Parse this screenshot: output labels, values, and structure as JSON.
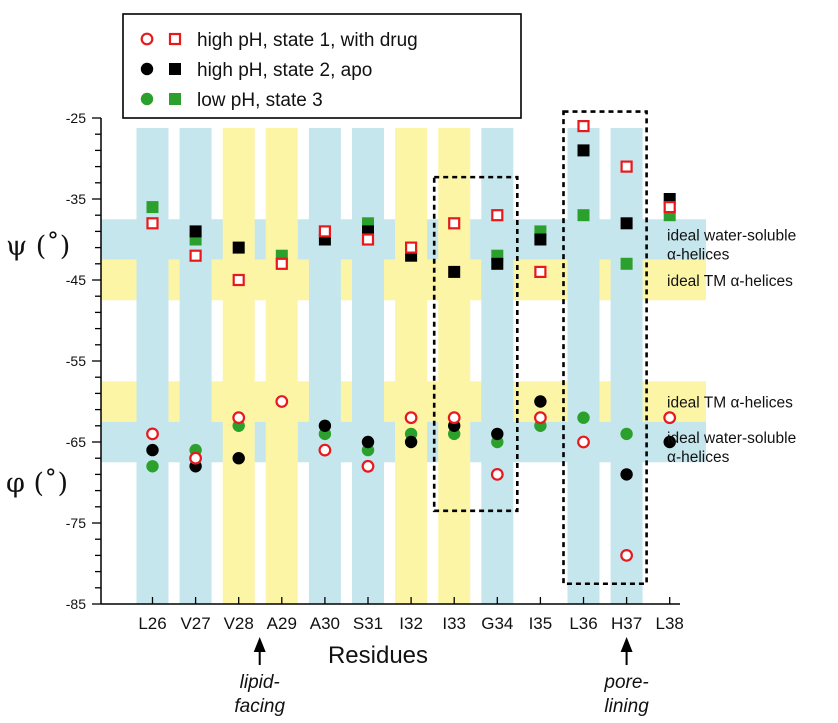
{
  "chart_data": {
    "type": "scatter",
    "xlabel": "Residues",
    "categories": [
      "L26",
      "V27",
      "V28",
      "A29",
      "A30",
      "S31",
      "I32",
      "I33",
      "G34",
      "I35",
      "L36",
      "H37",
      "L38"
    ],
    "y_range": [
      -85,
      -25
    ],
    "y_ticks": [
      -25,
      -35,
      -45,
      -55,
      -65,
      -75,
      -85
    ],
    "axis_symbols": {
      "psi": "ψ (˚)",
      "phi": "φ (˚)"
    },
    "legend_placement": "top-left",
    "legend": [
      {
        "label": "high pH, state 1, with drug",
        "color": "#e8191d",
        "fill": "open"
      },
      {
        "label": "high pH, state 2, apo",
        "color": "#000000",
        "fill": "solid"
      },
      {
        "label": "low pH, state 3",
        "color": "#2ca02c",
        "fill": "solid"
      }
    ],
    "column_colors": {
      "L26": "blue",
      "V27": "blue",
      "V28": "yellow",
      "A29": "yellow",
      "A30": "blue",
      "S31": "blue",
      "I32": "yellow",
      "I33": "yellow",
      "G34": "blue",
      "I35": "none",
      "L36": "blue",
      "H37": "blue",
      "L38": "none"
    },
    "bands": [
      {
        "kind": "water",
        "range": [
          -42.5,
          -37.5
        ],
        "label1": "ideal water-soluble",
        "label2": "α-helices"
      },
      {
        "kind": "tm",
        "range": [
          -47.5,
          -42.5
        ],
        "label1": "ideal TM α-helices",
        "label2": ""
      },
      {
        "kind": "tm",
        "range": [
          -62.5,
          -57.5
        ],
        "label1": "ideal TM α-helices",
        "label2": ""
      },
      {
        "kind": "water",
        "range": [
          -67.5,
          -62.5
        ],
        "label1": "ideal water-soluble",
        "label2": "α-helices"
      }
    ],
    "highlight_boxes": [
      {
        "from": "I33",
        "to": "G34",
        "y_range": [
          -73.5,
          -32.3
        ]
      },
      {
        "from": "L36",
        "to": "H37",
        "y_range": [
          -82.5,
          -24.2
        ]
      }
    ],
    "annotations": [
      {
        "residue": "V28",
        "lines": [
          "lipid-",
          "facing"
        ]
      },
      {
        "residue": "H37",
        "lines": [
          "pore-",
          "lining"
        ]
      }
    ],
    "colors": {
      "band_blue": "#c6e6ee",
      "band_yellow": "#fdf5a6",
      "drug": "#e8191d",
      "apo": "#000000",
      "low_ph": "#2ca02c"
    },
    "series": [
      {
        "name": "high pH, state 1, with drug",
        "angle": "psi",
        "marker": "open-square",
        "x": [
          "L26",
          "V27",
          "V28",
          "A29",
          "A30",
          "S31",
          "I32",
          "I33",
          "G34",
          "I35",
          "L36",
          "H37",
          "L38"
        ],
        "values": [
          -38,
          -42,
          -45,
          -43,
          -39,
          -40,
          -41,
          -38,
          -37,
          -44,
          -26,
          -31,
          -36
        ]
      },
      {
        "name": "high pH, state 2, apo",
        "angle": "psi",
        "marker": "square",
        "x": [
          "V27",
          "V28",
          "A30",
          "S31",
          "I32",
          "I33",
          "G34",
          "I35",
          "L36",
          "H37",
          "L38"
        ],
        "values": [
          -39,
          -41,
          -40,
          -39,
          -42,
          -44,
          -43,
          -40,
          -29,
          -38,
          -35
        ]
      },
      {
        "name": "low pH, state 3",
        "angle": "psi",
        "marker": "square",
        "x": [
          "L26",
          "V27",
          "A29",
          "S31",
          "G34",
          "I35",
          "L36",
          "H37",
          "L38"
        ],
        "values": [
          -36,
          -40,
          -42,
          -38,
          -42,
          -39,
          -37,
          -43,
          -37
        ]
      },
      {
        "name": "high pH, state 1, with drug",
        "angle": "phi",
        "marker": "open-circle",
        "x": [
          "L26",
          "V27",
          "V28",
          "A29",
          "A30",
          "S31",
          "I32",
          "I33",
          "G34",
          "I35",
          "L36",
          "H37",
          "L38"
        ],
        "values": [
          -64,
          -67,
          -62,
          -60,
          -66,
          -68,
          -62,
          -62,
          -69,
          -62,
          -65,
          -79,
          -62
        ]
      },
      {
        "name": "high pH, state 2, apo",
        "angle": "phi",
        "marker": "circle",
        "x": [
          "L26",
          "V27",
          "V28",
          "A30",
          "S31",
          "I32",
          "I33",
          "G34",
          "I35",
          "H37",
          "L38"
        ],
        "values": [
          -66,
          -68,
          -67,
          -63,
          -65,
          -65,
          -63,
          -64,
          -60,
          -69,
          -65
        ]
      },
      {
        "name": "low pH, state 3",
        "angle": "phi",
        "marker": "circle",
        "x": [
          "L26",
          "V27",
          "V28",
          "A30",
          "S31",
          "I32",
          "I33",
          "G34",
          "I35",
          "L36",
          "H37"
        ],
        "values": [
          -68,
          -66,
          -63,
          -64,
          -66,
          -64,
          -64,
          -65,
          -63,
          -62,
          -64
        ]
      }
    ]
  }
}
